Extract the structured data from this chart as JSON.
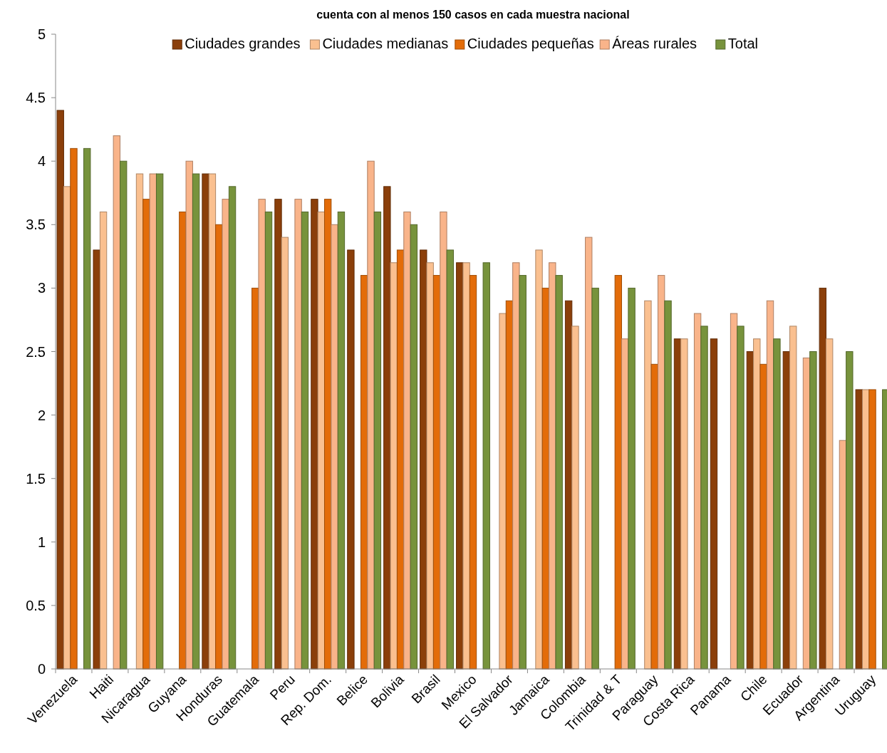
{
  "chart_data": {
    "type": "bar",
    "title": "cuenta con al menos 150 casos en cada muestra nacional",
    "categories": [
      "Venezuela",
      "Haiti",
      "Nicaragua",
      "Guyana",
      "Honduras",
      "Guatemala",
      "Peru",
      "Rep. Dom.",
      "Belice",
      "Bolivia",
      "Brasil",
      "Mexico",
      "El Salvador",
      "Jamaica",
      "Colombia",
      "Trinidad & T",
      "Paraguay",
      "Costa Rica",
      "Panama",
      "Chile",
      "Ecuador",
      "Argentina",
      "Uruguay"
    ],
    "series": [
      {
        "name": "Ciudades grandes",
        "color": "#8b3f0a",
        "values": [
          4.4,
          3.3,
          null,
          null,
          3.9,
          null,
          3.7,
          3.7,
          3.3,
          3.8,
          3.3,
          3.2,
          null,
          null,
          2.9,
          null,
          null,
          2.6,
          2.6,
          2.5,
          2.5,
          3.0,
          2.2
        ]
      },
      {
        "name": "Ciudades medianas",
        "color": "#fac090",
        "values": [
          3.8,
          3.6,
          3.9,
          null,
          3.9,
          null,
          3.4,
          3.6,
          null,
          3.2,
          3.2,
          3.2,
          2.8,
          3.3,
          2.7,
          null,
          2.9,
          2.6,
          null,
          2.6,
          2.7,
          2.6,
          2.2
        ]
      },
      {
        "name": "Ciudades pequeñas",
        "color": "#e36c09",
        "values": [
          4.1,
          null,
          3.7,
          3.6,
          3.5,
          3.0,
          null,
          3.7,
          3.1,
          3.3,
          3.1,
          3.1,
          2.9,
          3.0,
          null,
          3.1,
          2.4,
          null,
          null,
          2.4,
          null,
          null,
          2.2
        ]
      },
      {
        "name": "Áreas rurales",
        "color": "#f9b48a",
        "values": [
          null,
          4.2,
          3.9,
          4.0,
          3.7,
          3.7,
          3.7,
          3.5,
          4.0,
          3.6,
          3.6,
          null,
          3.2,
          3.2,
          3.4,
          2.6,
          3.1,
          2.8,
          2.8,
          2.9,
          2.45,
          1.8,
          null
        ]
      },
      {
        "name": "Total",
        "color": "#77933c",
        "values": [
          4.1,
          4.0,
          3.9,
          3.9,
          3.8,
          3.6,
          3.6,
          3.6,
          3.6,
          3.5,
          3.3,
          3.2,
          3.1,
          3.1,
          3.0,
          3.0,
          2.9,
          2.7,
          2.7,
          2.6,
          2.5,
          2.5,
          2.2
        ]
      }
    ],
    "ylim": [
      0,
      5
    ],
    "yticks": [
      0,
      0.5,
      1,
      1.5,
      2,
      2.5,
      3,
      3.5,
      4,
      4.5,
      5
    ],
    "grid": false,
    "legend": "top"
  }
}
